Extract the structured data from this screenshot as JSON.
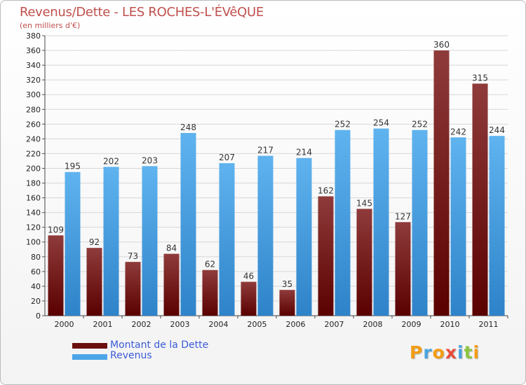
{
  "title": "Revenus/Dette - LES ROCHES-L'ÉVêQUE",
  "subtitle": "(en milliers d'€)",
  "legend": [
    {
      "label": "Montant de la Dette",
      "color": "#6b0f0f"
    },
    {
      "label": "Revenus",
      "color": "#4da6e8"
    }
  ],
  "logo": {
    "letters": [
      "P",
      "r",
      "o",
      "x",
      "i",
      "t",
      "i"
    ],
    "colors": [
      "#f39c12",
      "#4aa3df",
      "#f39c12",
      "#e74c3c",
      "#4aa3df",
      "#8cc63f",
      "#f39c12"
    ]
  },
  "colors": {
    "dette_top": "#8f3b3b",
    "dette_bottom": "#5a0000",
    "revenus_top": "#5fb3ef",
    "revenus_bottom": "#2e83c9",
    "grid": "#d7d7d7",
    "axis_text": "#222222"
  },
  "chart_data": {
    "type": "bar",
    "title": "Revenus/Dette - LES ROCHES-L'ÉVêQUE",
    "ylabel": "(en milliers d'€)",
    "xlabel": "",
    "categories": [
      "2000",
      "2001",
      "2002",
      "2003",
      "2004",
      "2005",
      "2006",
      "2007",
      "2008",
      "2009",
      "2010",
      "2011"
    ],
    "series": [
      {
        "name": "Montant de la Dette",
        "values": [
          109,
          92,
          73,
          84,
          62,
          46,
          35,
          162,
          145,
          127,
          360,
          315
        ]
      },
      {
        "name": "Revenus",
        "values": [
          195,
          202,
          203,
          248,
          207,
          217,
          214,
          252,
          254,
          252,
          242,
          244
        ]
      }
    ],
    "ylim": [
      0,
      380
    ],
    "yticks": [
      0,
      20,
      40,
      60,
      80,
      100,
      120,
      140,
      160,
      180,
      200,
      220,
      240,
      260,
      280,
      300,
      320,
      340,
      360,
      380
    ],
    "grid": true,
    "legend_position": "bottom-left"
  }
}
